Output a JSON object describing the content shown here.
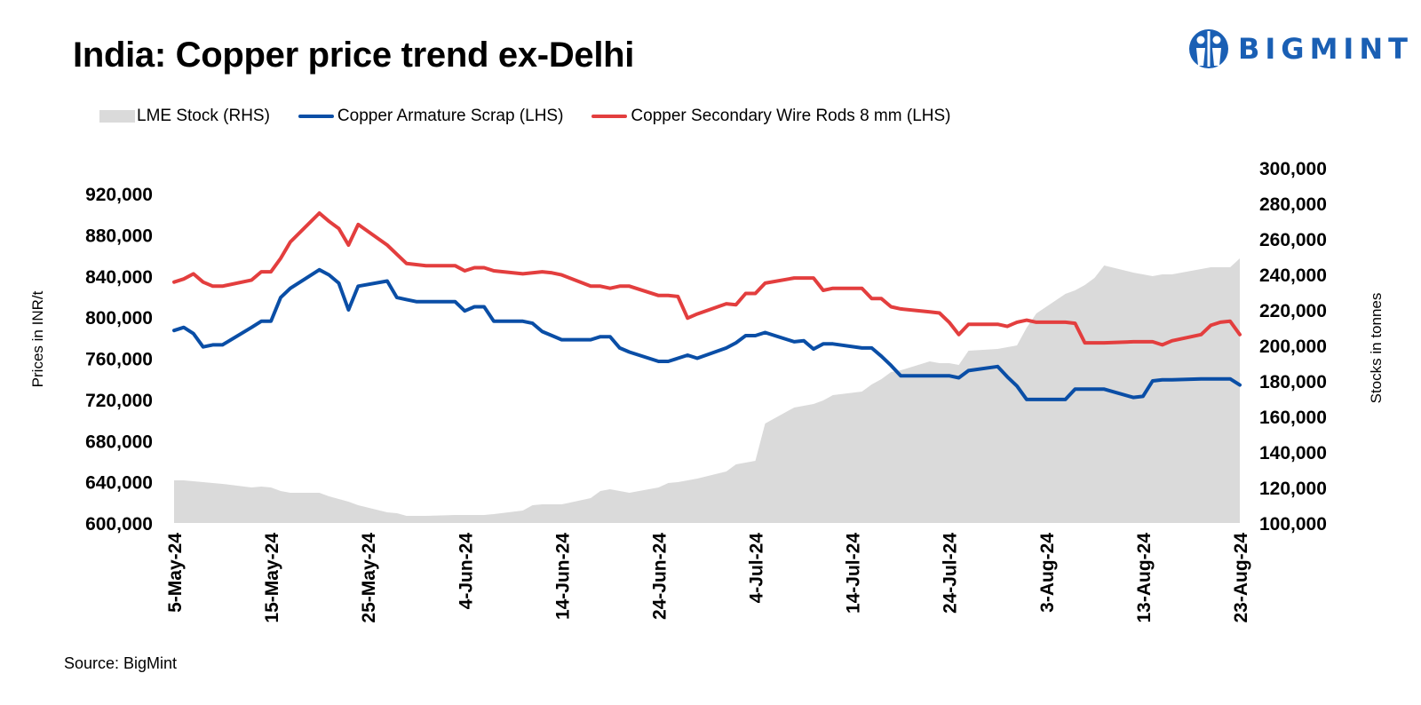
{
  "header": {
    "title": "India: Copper price trend ex-Delhi"
  },
  "logo": {
    "text": "BIGMINT"
  },
  "source": "Source: BigMint",
  "colors": {
    "stock": "#dadada",
    "scrap": "#0a4ea6",
    "rods": "#e33e3e",
    "logo": "#1a5fb4"
  },
  "chart_data": {
    "type": "line",
    "title": "India: Copper price trend ex-Delhi",
    "legend_position": "top-left",
    "grid": false,
    "x": [
      "5-May-24",
      "6-May-24",
      "7-May-24",
      "8-May-24",
      "9-May-24",
      "10-May-24",
      "13-May-24",
      "14-May-24",
      "15-May-24",
      "16-May-24",
      "17-May-24",
      "20-May-24",
      "21-May-24",
      "22-May-24",
      "23-May-24",
      "24-May-24",
      "27-May-24",
      "28-May-24",
      "29-May-24",
      "30-May-24",
      "31-May-24",
      "3-Jun-24",
      "4-Jun-24",
      "5-Jun-24",
      "6-Jun-24",
      "7-Jun-24",
      "10-Jun-24",
      "11-Jun-24",
      "12-Jun-24",
      "13-Jun-24",
      "14-Jun-24",
      "17-Jun-24",
      "18-Jun-24",
      "19-Jun-24",
      "20-Jun-24",
      "21-Jun-24",
      "24-Jun-24",
      "25-Jun-24",
      "26-Jun-24",
      "27-Jun-24",
      "28-Jun-24",
      "1-Jul-24",
      "2-Jul-24",
      "3-Jul-24",
      "4-Jul-24",
      "5-Jul-24",
      "8-Jul-24",
      "9-Jul-24",
      "10-Jul-24",
      "11-Jul-24",
      "12-Jul-24",
      "15-Jul-24",
      "16-Jul-24",
      "17-Jul-24",
      "18-Jul-24",
      "19-Jul-24",
      "22-Jul-24",
      "23-Jul-24",
      "24-Jul-24",
      "25-Jul-24",
      "26-Jul-24",
      "29-Jul-24",
      "30-Jul-24",
      "31-Jul-24",
      "1-Aug-24",
      "2-Aug-24",
      "5-Aug-24",
      "6-Aug-24",
      "7-Aug-24",
      "8-Aug-24",
      "9-Aug-24",
      "12-Aug-24",
      "13-Aug-24",
      "14-Aug-24",
      "15-Aug-24",
      "16-Aug-24",
      "19-Aug-24",
      "20-Aug-24",
      "21-Aug-24",
      "22-Aug-24",
      "23-Aug-24"
    ],
    "x_tick_labels": [
      "5-May-24",
      "15-May-24",
      "25-May-24",
      "4-Jun-24",
      "14-Jun-24",
      "24-Jun-24",
      "4-Jul-24",
      "14-Jul-24",
      "24-Jul-24",
      "3-Aug-24",
      "13-Aug-24",
      "23-Aug-24"
    ],
    "y_left": {
      "label": "Prices in INR/t",
      "range": [
        600000,
        920000
      ],
      "ticks": [
        "600,000",
        "640,000",
        "680,000",
        "720,000",
        "760,000",
        "800,000",
        "840,000",
        "880,000",
        "920,000"
      ]
    },
    "y_right": {
      "label": "Stocks in tonnes",
      "range": [
        100000,
        300000
      ],
      "ticks": [
        "100,000",
        "120,000",
        "140,000",
        "160,000",
        "180,000",
        "200,000",
        "220,000",
        "240,000",
        "260,000",
        "280,000",
        "300,000"
      ]
    },
    "series": [
      {
        "name": "LME Stock (RHS)",
        "type": "area",
        "axis": "right",
        "values": [
          124000,
          124000,
          123500,
          123000,
          122500,
          122000,
          120000,
          120500,
          120000,
          118000,
          117000,
          117000,
          115000,
          113500,
          112000,
          110000,
          106000,
          105500,
          104000,
          104000,
          104000,
          104500,
          104500,
          104500,
          104500,
          105000,
          107000,
          110000,
          110500,
          110500,
          110500,
          114000,
          118000,
          119000,
          118000,
          117000,
          120000,
          122500,
          123000,
          124000,
          125000,
          129000,
          133000,
          134000,
          135000,
          156000,
          165000,
          166000,
          167000,
          169000,
          172000,
          174000,
          178000,
          181000,
          185000,
          186000,
          191000,
          190000,
          190000,
          189000,
          197000,
          198000,
          199000,
          200000,
          210000,
          218000,
          229000,
          231000,
          234000,
          238000,
          245000,
          241000,
          240000,
          239000,
          240000,
          240000,
          243000,
          244000,
          244000,
          244000,
          249000
        ]
      },
      {
        "name": "Copper Armature Scrap (LHS)",
        "type": "line",
        "axis": "left",
        "values": [
          787000,
          790000,
          784000,
          771000,
          773000,
          773000,
          790000,
          796000,
          796000,
          819000,
          828000,
          846000,
          841000,
          833000,
          807000,
          830000,
          835000,
          819000,
          817000,
          815000,
          815000,
          815000,
          806000,
          810000,
          810000,
          796000,
          796000,
          794000,
          786000,
          782000,
          778000,
          778000,
          781000,
          781000,
          770000,
          766000,
          757000,
          757000,
          760000,
          763000,
          760000,
          770000,
          775000,
          782000,
          782000,
          785000,
          776000,
          777000,
          769000,
          774000,
          774000,
          770000,
          770000,
          762000,
          753000,
          743000,
          743000,
          743000,
          743000,
          741000,
          748000,
          752000,
          742000,
          733000,
          720000,
          720000,
          720000,
          730000,
          730000,
          730000,
          730000,
          722000,
          723000,
          738000,
          739000,
          739000,
          740000,
          740000,
          740000,
          740000,
          734000
        ]
      },
      {
        "name": "Copper Secondary Wire Rods 8 mm (LHS)",
        "type": "line",
        "axis": "left",
        "values": [
          834000,
          837000,
          842000,
          834000,
          830000,
          830000,
          836000,
          844000,
          844000,
          857000,
          873000,
          901000,
          893000,
          886000,
          870000,
          890000,
          870000,
          861000,
          852000,
          851000,
          850000,
          850000,
          845000,
          848000,
          848000,
          845000,
          842000,
          843000,
          844000,
          843000,
          841000,
          830000,
          830000,
          828000,
          830000,
          830000,
          821000,
          821000,
          820000,
          799000,
          803000,
          813000,
          812000,
          823000,
          823000,
          833000,
          838000,
          838000,
          838000,
          826000,
          828000,
          828000,
          818000,
          818000,
          810000,
          808000,
          805000,
          804000,
          795000,
          783000,
          793000,
          793000,
          791000,
          795000,
          797000,
          795000,
          795000,
          794000,
          775000,
          775000,
          775000,
          776000,
          776000,
          776000,
          773000,
          777000,
          783000,
          792000,
          795000,
          796000,
          783000
        ]
      }
    ]
  }
}
